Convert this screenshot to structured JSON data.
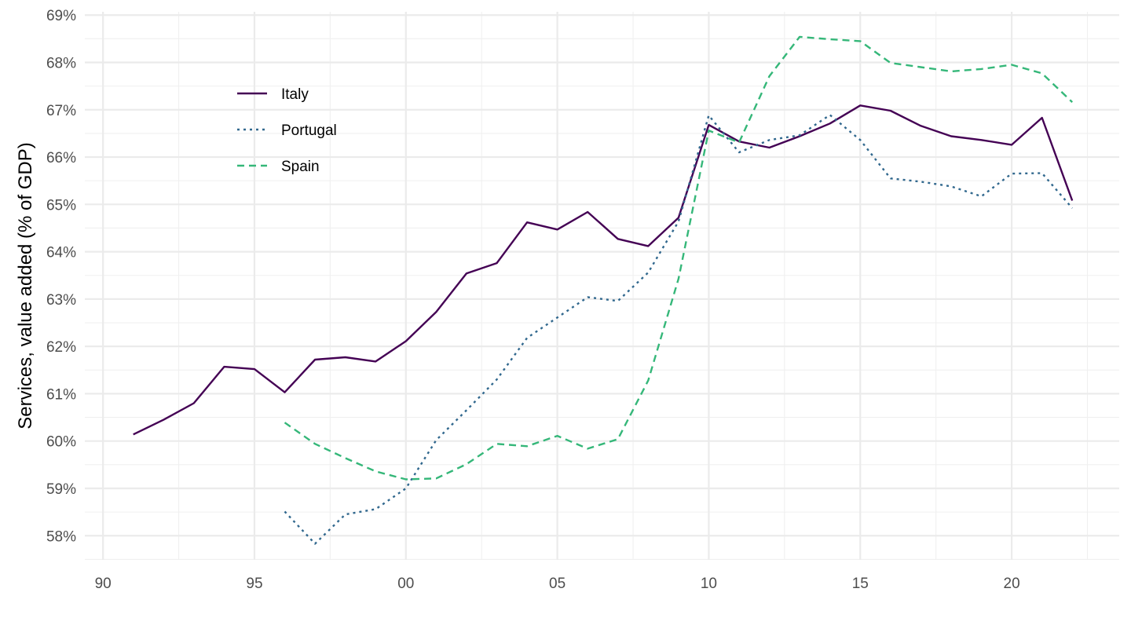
{
  "chart_data": {
    "type": "line",
    "title": "",
    "xlabel": "",
    "ylabel": "Services, value added (% of GDP)",
    "xlim": [
      1989.4,
      2023.55
    ],
    "ylim": [
      57.49,
      69.07
    ],
    "grid": true,
    "legend_position": "top-left-inside",
    "x_ticks": [
      {
        "value": 1990,
        "label": "90"
      },
      {
        "value": 1995,
        "label": "95"
      },
      {
        "value": 2000,
        "label": "00"
      },
      {
        "value": 2005,
        "label": "05"
      },
      {
        "value": 2010,
        "label": "10"
      },
      {
        "value": 2015,
        "label": "15"
      },
      {
        "value": 2020,
        "label": "20"
      }
    ],
    "y_ticks": [
      {
        "value": 58,
        "label": "58%"
      },
      {
        "value": 59,
        "label": "59%"
      },
      {
        "value": 60,
        "label": "60%"
      },
      {
        "value": 61,
        "label": "61%"
      },
      {
        "value": 62,
        "label": "62%"
      },
      {
        "value": 63,
        "label": "63%"
      },
      {
        "value": 64,
        "label": "64%"
      },
      {
        "value": 65,
        "label": "65%"
      },
      {
        "value": 66,
        "label": "66%"
      },
      {
        "value": 67,
        "label": "67%"
      },
      {
        "value": 68,
        "label": "68%"
      },
      {
        "value": 69,
        "label": "69%"
      }
    ],
    "series": [
      {
        "name": "Italy",
        "color": "#440154",
        "dash": "solid",
        "x": [
          1991,
          1992,
          1993,
          1994,
          1995,
          1996,
          1997,
          1998,
          1999,
          2000,
          2001,
          2002,
          2003,
          2004,
          2005,
          2006,
          2007,
          2008,
          2009,
          2010,
          2011,
          2012,
          2013,
          2014,
          2015,
          2016,
          2017,
          2018,
          2019,
          2020,
          2021,
          2022
        ],
        "values": [
          60.14,
          60.45,
          60.8,
          61.57,
          61.52,
          61.03,
          61.72,
          61.77,
          61.68,
          62.11,
          62.73,
          63.54,
          63.76,
          64.62,
          64.47,
          64.84,
          64.27,
          64.12,
          64.72,
          66.68,
          66.33,
          66.2,
          66.44,
          66.71,
          67.09,
          66.98,
          66.66,
          66.44,
          66.36,
          66.26,
          66.83,
          65.08
        ]
      },
      {
        "name": "Portugal",
        "color": "#31688e",
        "dash": "dotted",
        "x": [
          1996,
          1997,
          1998,
          1999,
          2000,
          2001,
          2002,
          2003,
          2004,
          2005,
          2006,
          2007,
          2008,
          2009,
          2010,
          2011,
          2012,
          2013,
          2014,
          2015,
          2016,
          2017,
          2018,
          2019,
          2020,
          2021,
          2022
        ],
        "values": [
          58.51,
          57.83,
          58.45,
          58.56,
          59.0,
          60.02,
          60.65,
          61.3,
          62.18,
          62.61,
          63.04,
          62.96,
          63.56,
          64.64,
          66.88,
          66.1,
          66.36,
          66.46,
          66.89,
          66.36,
          65.55,
          65.48,
          65.38,
          65.17,
          65.65,
          65.66,
          64.92
        ]
      },
      {
        "name": "Spain",
        "color": "#35b779",
        "dash": "dashed",
        "x": [
          1996,
          1997,
          1998,
          1999,
          2000,
          2001,
          2002,
          2003,
          2004,
          2005,
          2006,
          2007,
          2008,
          2009,
          2010,
          2011,
          2012,
          2013,
          2014,
          2015,
          2016,
          2017,
          2018,
          2019,
          2020,
          2021,
          2022
        ],
        "values": [
          60.39,
          59.94,
          59.64,
          59.36,
          59.19,
          59.21,
          59.51,
          59.94,
          59.89,
          60.11,
          59.84,
          60.04,
          61.28,
          63.43,
          66.56,
          66.31,
          67.71,
          68.54,
          68.49,
          68.45,
          67.99,
          67.9,
          67.81,
          67.86,
          67.95,
          67.77,
          67.16
        ]
      }
    ]
  }
}
